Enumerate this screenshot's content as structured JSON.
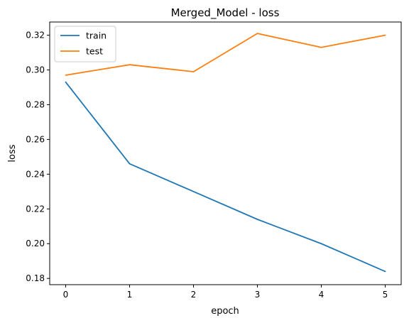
{
  "chart_data": {
    "type": "line",
    "title": "Merged_Model - loss",
    "xlabel": "epoch",
    "ylabel": "loss",
    "x": [
      0,
      1,
      2,
      3,
      4,
      5
    ],
    "xticks": [
      "0",
      "1",
      "2",
      "3",
      "4",
      "5"
    ],
    "yticks": [
      "0.18",
      "0.20",
      "0.22",
      "0.24",
      "0.26",
      "0.28",
      "0.30",
      "0.32"
    ],
    "xlim": [
      -0.25,
      5.25
    ],
    "ylim": [
      0.1764,
      0.3276
    ],
    "grid": false,
    "legend_position": "top-left",
    "series": [
      {
        "name": "train",
        "color": "#1f77b4",
        "values": [
          0.293,
          0.246,
          0.23,
          0.214,
          0.2,
          0.184
        ]
      },
      {
        "name": "test",
        "color": "#ff7f0e",
        "values": [
          0.297,
          0.303,
          0.299,
          0.321,
          0.313,
          0.32
        ]
      }
    ]
  }
}
